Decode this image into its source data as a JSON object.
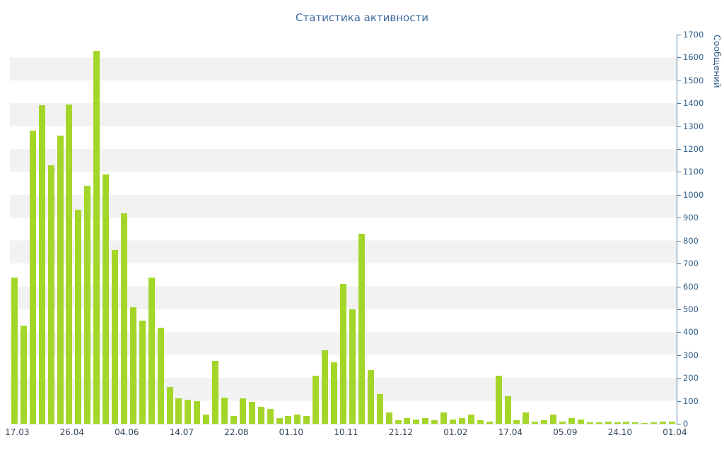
{
  "title": "Статистика активности",
  "chart_data": {
    "type": "bar",
    "title": "Статистика активности",
    "xlabel": "",
    "ylabel": "Сообщений",
    "ylim": [
      0,
      1700
    ],
    "y_tick_step": 100,
    "grid": "striped-horizontal-bands",
    "legend_position": "none",
    "bar_color": "#a4d62a",
    "stripe_color": "#f2f2f2",
    "axis_color": "#4e7fa8",
    "y_tick_label_color": "#33608a",
    "x_tick_label_color": "#33475b",
    "title_color": "#3d6a9f",
    "values": [
      640,
      430,
      1280,
      1390,
      1130,
      1260,
      1395,
      935,
      1040,
      1630,
      1090,
      760,
      920,
      510,
      450,
      640,
      420,
      160,
      110,
      105,
      100,
      40,
      275,
      115,
      35,
      110,
      95,
      75,
      65,
      25,
      35,
      40,
      35,
      210,
      320,
      270,
      610,
      500,
      830,
      235,
      130,
      50,
      15,
      25,
      20,
      25,
      15,
      50,
      20,
      25,
      40,
      15,
      10,
      210,
      120,
      15,
      50,
      10,
      15,
      40,
      10,
      25,
      20,
      5,
      5,
      8,
      5,
      8,
      5,
      3,
      5,
      8,
      10
    ],
    "x_ticks": [
      {
        "index": 0,
        "label": "17.03"
      },
      {
        "index": 6,
        "label": "26.04"
      },
      {
        "index": 12,
        "label": "04.06"
      },
      {
        "index": 18,
        "label": "14.07"
      },
      {
        "index": 24,
        "label": "22.08"
      },
      {
        "index": 30,
        "label": "01.10"
      },
      {
        "index": 36,
        "label": "10.11"
      },
      {
        "index": 42,
        "label": "21.12"
      },
      {
        "index": 48,
        "label": "01.02"
      },
      {
        "index": 54,
        "label": "17.04"
      },
      {
        "index": 60,
        "label": "05.09"
      },
      {
        "index": 66,
        "label": "24.10"
      },
      {
        "index": 72,
        "label": "01.04"
      }
    ]
  }
}
